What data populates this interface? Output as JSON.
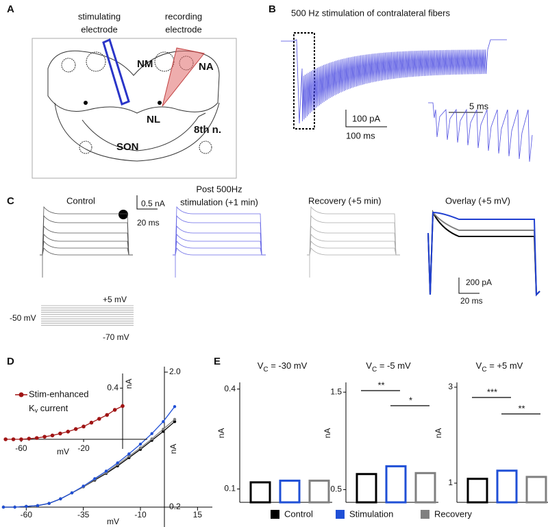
{
  "panel_labels": [
    "A",
    "B",
    "C",
    "D",
    "E"
  ],
  "panel_a": {
    "stimulating_electrode": [
      "stimulating",
      "electrode"
    ],
    "recording_electrode": [
      "recording",
      "electrode"
    ],
    "nuclei": [
      "NM",
      "NA",
      "NL",
      "8th n.",
      "SON"
    ]
  },
  "panel_b": {
    "title": "500 Hz stimulation of contralateral fibers",
    "scale_current": "100 pA",
    "scale_time": "100 ms",
    "inset_scale_time": "5 ms"
  },
  "panel_c": {
    "titles": [
      "Control",
      "Post 500Hz",
      "stimulation (+1 min)",
      "Recovery (+5 min)",
      "Overlay (+5 mV)"
    ],
    "scale_current": "0.5 nA",
    "scale_time": "20 ms",
    "steps": [
      "+5 mV",
      "-50 mV",
      "-70 mV"
    ],
    "overlay_scale_current": "200 pA",
    "overlay_scale_time": "20 ms"
  },
  "chart_data": [
    {
      "type": "line",
      "xlabel": "mV",
      "ylabel": "nA",
      "x": [
        -70,
        -65,
        -60,
        -55,
        -50,
        -45,
        -40,
        -35,
        -30,
        -25,
        -20,
        -15,
        -10,
        -5,
        0,
        5
      ],
      "xlim": [
        -67,
        20
      ],
      "ylim": [
        0.2,
        2.0
      ],
      "xticks": [
        -60,
        -35,
        -10,
        15
      ],
      "yticks": [
        {
          "value": 2.0,
          "label": "2.0"
        },
        0.2
      ],
      "series": [
        {
          "color": "#000000",
          "values": [
            0.2,
            0.2,
            0.21,
            0.22,
            0.25,
            0.31,
            0.39,
            0.47,
            0.56,
            0.65,
            0.75,
            0.86,
            0.97,
            1.09,
            1.21,
            1.34
          ]
        },
        {
          "color": "#808080",
          "values": [
            0.2,
            0.2,
            0.21,
            0.22,
            0.25,
            0.31,
            0.39,
            0.47,
            0.57,
            0.66,
            0.77,
            0.88,
            0.99,
            1.11,
            1.24,
            1.37
          ]
        },
        {
          "color": "#1f4fd6",
          "values": [
            0.2,
            0.2,
            0.21,
            0.22,
            0.25,
            0.31,
            0.39,
            0.48,
            0.58,
            0.68,
            0.79,
            0.91,
            1.04,
            1.18,
            1.34,
            1.54
          ]
        }
      ]
    },
    {
      "type": "line",
      "xlabel": "mV",
      "ylabel": "nA",
      "x": [
        -70,
        -65,
        -60,
        -55,
        -50,
        -45,
        -40,
        -35,
        -30,
        -25,
        -20,
        -15,
        -10,
        -5,
        0,
        5
      ],
      "xlim": [
        -67,
        5
      ],
      "ylim": [
        0,
        0.45
      ],
      "xticks": [
        -60,
        -20
      ],
      "yticks": [
        0.4
      ],
      "series": [
        {
          "name": "Stim-enhanced",
          "name_line2": [
            "K",
            "v",
            " current"
          ],
          "color": "#a01414",
          "values": [
            0,
            0,
            0,
            0.005,
            0.01,
            0.02,
            0.03,
            0.045,
            0.06,
            0.08,
            0.1,
            0.13,
            0.16,
            0.19,
            0.23,
            0.26
          ]
        }
      ]
    },
    {
      "type": "bar",
      "title": [
        "V",
        "C",
        " = -30 mV"
      ],
      "ylabel": "nA",
      "ylim": [
        0.06,
        0.42
      ],
      "yticks": [
        0.4,
        0.1
      ],
      "values": [
        0.12,
        0.125,
        0.125
      ],
      "significance": []
    },
    {
      "type": "bar",
      "title": [
        "V",
        "C",
        " = -5 mV"
      ],
      "ylabel": "nA",
      "ylim": [
        0.37,
        1.6
      ],
      "yticks": [
        1.5,
        0.5
      ],
      "values": [
        0.66,
        0.74,
        0.67
      ],
      "significance": [
        "**",
        "*"
      ]
    },
    {
      "type": "bar",
      "title": [
        "V",
        "C",
        " = +5 mV"
      ],
      "ylabel": "nA",
      "ylim": [
        0.6,
        3.1
      ],
      "yticks": [
        3,
        1
      ],
      "values": [
        1.09,
        1.26,
        1.13
      ],
      "significance": [
        "***",
        "**"
      ]
    }
  ],
  "legend": [
    {
      "name": "Control",
      "color": "#000000"
    },
    {
      "name": "Stimulation",
      "color": "#1f4fd6"
    },
    {
      "name": "Recovery",
      "color": "#808080"
    }
  ]
}
